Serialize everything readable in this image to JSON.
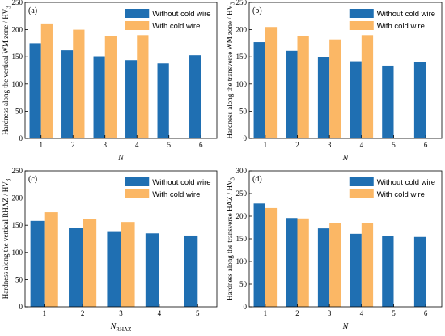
{
  "colors": {
    "without": "#1f6fb2",
    "with": "#fbb765",
    "axis": "#000000"
  },
  "chart_data": [
    {
      "type": "bar",
      "panel_label": "(a)",
      "categories": [
        "1",
        "2",
        "3",
        "4",
        "5",
        "6"
      ],
      "series": [
        {
          "name": "Without cold wire",
          "values": [
            175,
            162,
            151,
            144,
            138,
            153
          ]
        },
        {
          "name": "With cold wire",
          "values": [
            210,
            200,
            188,
            190,
            null,
            null
          ]
        }
      ],
      "ylabel": "Hardness along the vertical WM zone / HV",
      "ylabel_sub": "3",
      "xlabel": "N",
      "xlabel_sub": "",
      "ylim": [
        0,
        250
      ],
      "yticks": [
        0,
        50,
        100,
        150,
        200,
        250
      ],
      "legend_position": "top-right"
    },
    {
      "type": "bar",
      "panel_label": "(b)",
      "categories": [
        "1",
        "2",
        "3",
        "4",
        "5",
        "6"
      ],
      "series": [
        {
          "name": "Without cold wire",
          "values": [
            177,
            161,
            150,
            142,
            134,
            141
          ]
        },
        {
          "name": "With cold wire",
          "values": [
            205,
            189,
            182,
            190,
            null,
            null
          ]
        }
      ],
      "ylabel": "Hardness along the transverse WM zone / HV",
      "ylabel_sub": "3",
      "xlabel": "N",
      "xlabel_sub": "",
      "ylim": [
        0,
        250
      ],
      "yticks": [
        0,
        50,
        100,
        150,
        200,
        250
      ],
      "legend_position": "top-right"
    },
    {
      "type": "bar",
      "panel_label": "(c)",
      "categories": [
        "1",
        "2",
        "3",
        "4",
        "5"
      ],
      "series": [
        {
          "name": "Without cold wire",
          "values": [
            158,
            145,
            139,
            135,
            131
          ]
        },
        {
          "name": "With cold wire",
          "values": [
            174,
            161,
            156,
            null,
            null
          ]
        }
      ],
      "ylabel": "Hardness along the vertical RHAZ / HV",
      "ylabel_sub": "3",
      "xlabel": "N",
      "xlabel_sub": "RHAZ",
      "ylim": [
        0,
        250
      ],
      "yticks": [
        0,
        50,
        100,
        150,
        200,
        250
      ],
      "legend_position": "top-right"
    },
    {
      "type": "bar",
      "panel_label": "(d)",
      "categories": [
        "1",
        "2",
        "3",
        "4",
        "5",
        "6"
      ],
      "series": [
        {
          "name": "Without cold wire",
          "values": [
            228,
            196,
            173,
            161,
            156,
            154
          ]
        },
        {
          "name": "With cold wire",
          "values": [
            218,
            195,
            184,
            184,
            null,
            null
          ]
        }
      ],
      "ylabel": "Hardness along the transverse HAZ / HV",
      "ylabel_sub": "3",
      "xlabel": "N",
      "xlabel_sub": "",
      "ylim": [
        0,
        300
      ],
      "yticks": [
        0,
        50,
        100,
        150,
        200,
        250,
        300
      ],
      "legend_position": "top-right"
    }
  ]
}
